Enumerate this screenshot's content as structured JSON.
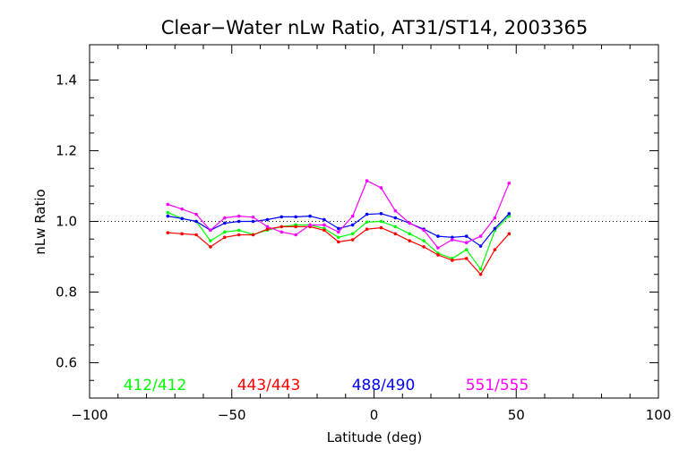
{
  "chart_data": {
    "type": "line",
    "title": "Clear−Water nLw Ratio, AT31/ST14, 2003365",
    "xlabel": "Latitude (deg)",
    "ylabel": "nLw Ratio",
    "xlim": [
      -100,
      100
    ],
    "ylim": [
      0.5,
      1.5
    ],
    "xticks": [
      -100,
      -50,
      0,
      50,
      100
    ],
    "xtick_labels": [
      "−100",
      "−50",
      "0",
      "50",
      "100"
    ],
    "yticks": [
      0.6,
      0.8,
      1.0,
      1.2,
      1.4
    ],
    "ytick_labels": [
      "0.6",
      "0.8",
      "1.0",
      "1.2",
      "1.4"
    ],
    "reference_line": 1.0,
    "grid": false,
    "legend_position": "bottom",
    "x": [
      -72.5,
      -67.5,
      -62.5,
      -57.5,
      -52.5,
      -47.5,
      -42.5,
      -37.5,
      -32.5,
      -27.5,
      -22.5,
      -17.5,
      -12.5,
      -7.5,
      -2.5,
      2.5,
      7.5,
      12.5,
      17.5,
      22.5,
      27.5,
      32.5,
      37.5,
      42.5,
      47.5
    ],
    "series": [
      {
        "name": "412/412",
        "color": "#00ff00",
        "values": [
          1.025,
          1.008,
          1.0,
          0.945,
          0.97,
          0.975,
          0.963,
          0.975,
          0.985,
          0.99,
          0.99,
          0.98,
          0.955,
          0.965,
          0.998,
          1.0,
          0.985,
          0.965,
          0.945,
          0.91,
          0.895,
          0.92,
          0.865,
          0.975,
          1.015
        ]
      },
      {
        "name": "443/443",
        "color": "#ff0000",
        "values": [
          0.968,
          0.965,
          0.962,
          0.928,
          0.955,
          0.962,
          0.962,
          0.978,
          0.985,
          0.985,
          0.985,
          0.975,
          0.942,
          0.948,
          0.978,
          0.982,
          0.965,
          0.945,
          0.928,
          0.905,
          0.89,
          0.895,
          0.85,
          0.92,
          0.965
        ]
      },
      {
        "name": "488/490",
        "color": "#0000ff",
        "values": [
          1.015,
          1.008,
          1.0,
          0.975,
          0.995,
          1.0,
          1.0,
          1.005,
          1.013,
          1.013,
          1.015,
          1.005,
          0.98,
          0.99,
          1.02,
          1.022,
          1.01,
          0.995,
          0.978,
          0.958,
          0.955,
          0.958,
          0.93,
          0.98,
          1.022
        ]
      },
      {
        "name": "551/555",
        "color": "#ff00ff",
        "values": [
          1.048,
          1.035,
          1.02,
          0.975,
          1.01,
          1.015,
          1.012,
          0.985,
          0.97,
          0.962,
          0.99,
          0.99,
          0.97,
          1.015,
          1.115,
          1.095,
          1.03,
          0.995,
          0.975,
          0.925,
          0.948,
          0.94,
          0.958,
          1.01,
          1.108
        ]
      }
    ]
  }
}
